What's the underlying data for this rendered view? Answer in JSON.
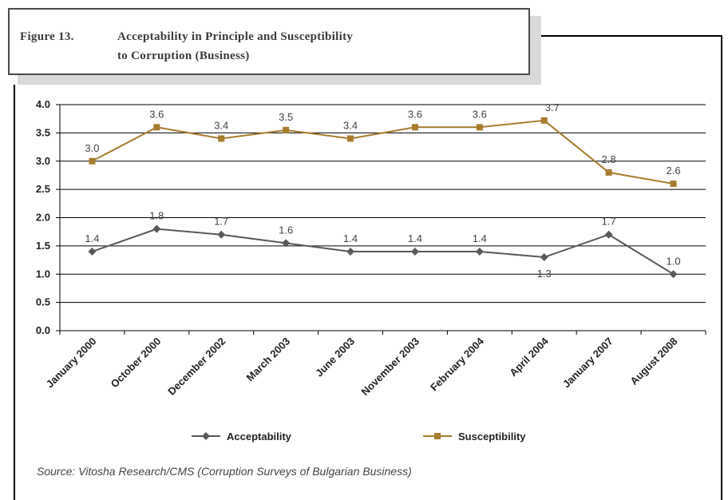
{
  "figure": {
    "number": "Figure 13.",
    "title_line1": "Acceptability in Principle and Susceptibility",
    "title_line2": "to Corruption (Business)"
  },
  "source": "Source:   Vitosha Research/CMS (Corruption Surveys of Bulgarian Business)",
  "chart_data": {
    "type": "line",
    "categories": [
      "January 2000",
      "October 2000",
      "December 2002",
      "March 2003",
      "June 2003",
      "November 2003",
      "February 2004",
      "April 2004",
      "January 2007",
      "August 2008"
    ],
    "ylim": [
      0,
      4.0
    ],
    "yticks": [
      "0.0",
      "0.5",
      "1.0",
      "1.5",
      "2.0",
      "2.5",
      "3.0",
      "3.5",
      "4.0"
    ],
    "grid": true,
    "legend_position": "bottom",
    "series": [
      {
        "name": "Acceptability",
        "color": "#595959",
        "marker": "diamond",
        "values": [
          1.4,
          1.8,
          1.7,
          1.55,
          1.4,
          1.4,
          1.4,
          1.3,
          1.7,
          1.0
        ],
        "labels": [
          "1.4",
          "1.8",
          "1.7",
          "1.6",
          "1.4",
          "1.4",
          "1.4",
          "1.3",
          "1.7",
          "1.0"
        ]
      },
      {
        "name": "Susceptibility",
        "color": "#a67c2e",
        "marker": "square",
        "values": [
          3.0,
          3.6,
          3.4,
          3.55,
          3.4,
          3.6,
          3.6,
          3.72,
          2.8,
          2.6
        ],
        "labels": [
          "3.0",
          "3.6",
          "3.4",
          "3.5",
          "3.4",
          "3.6",
          "3.6",
          "3.7",
          "2.8",
          "2.6"
        ]
      }
    ]
  }
}
